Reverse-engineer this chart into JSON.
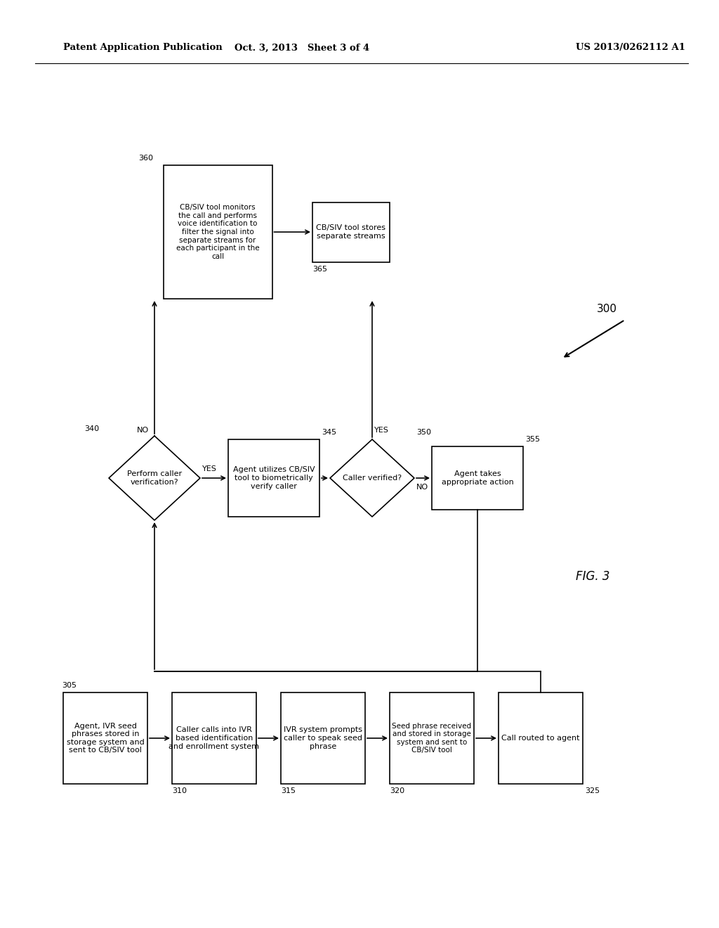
{
  "bg_color": "#ffffff",
  "header_left": "Patent Application Publication",
  "header_center": "Oct. 3, 2013   Sheet 3 of 4",
  "header_right": "US 2013/0262112 A1",
  "fig_label": "FIG. 3",
  "diagram_label": "300"
}
